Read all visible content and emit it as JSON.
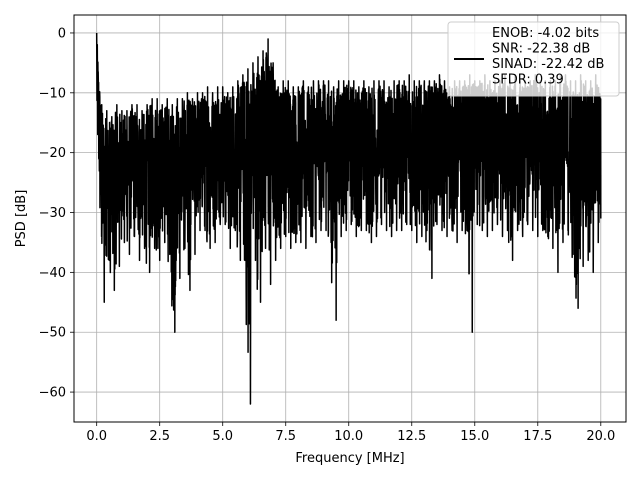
{
  "chart_data": {
    "type": "line",
    "xlabel": "Frequency [MHz]",
    "ylabel": "PSD [dB]",
    "xlim": [
      -0.9,
      21.0
    ],
    "ylim": [
      -65.0,
      3.0
    ],
    "xticks": [
      0.0,
      2.5,
      5.0,
      7.5,
      10.0,
      12.5,
      15.0,
      17.5,
      20.0
    ],
    "xtick_labels": [
      "0.0",
      "2.5",
      "5.0",
      "7.5",
      "10.0",
      "12.5",
      "15.0",
      "17.5",
      "20.0"
    ],
    "yticks": [
      0,
      -10,
      -20,
      -30,
      -40,
      -50,
      -60
    ],
    "ytick_labels": [
      "0",
      "−10",
      "−20",
      "−30",
      "−40",
      "−50",
      "−60"
    ],
    "grid": true,
    "legend_position": "top-right",
    "legend_lines": [
      "ENOB: -4.02 bits",
      "SNR: -22.38 dB",
      "SINAD: -22.42 dB",
      "SFDR: 0.39"
    ],
    "series_color": "#000000",
    "series": [
      {
        "x": [
          0.0,
          0.2,
          0.4,
          0.6,
          0.8,
          1.0,
          1.2,
          1.4,
          1.6,
          1.8,
          2.0,
          2.2,
          2.4,
          2.6,
          2.8,
          3.0,
          3.2,
          3.4,
          3.6,
          3.8,
          4.0,
          4.2,
          4.4,
          4.6,
          4.8,
          5.0,
          5.2,
          5.4,
          5.6,
          5.8,
          6.0,
          6.2,
          6.4,
          6.6,
          6.8,
          7.0,
          7.2,
          7.4,
          7.6,
          7.8,
          8.0,
          8.2,
          8.4,
          8.6,
          8.8,
          9.0,
          9.2,
          9.4,
          9.6,
          9.8,
          10.0,
          10.2,
          10.4,
          10.6,
          10.8,
          11.0,
          11.2,
          11.4,
          11.6,
          11.8,
          12.0,
          12.2,
          12.4,
          12.6,
          12.8,
          13.0,
          13.2,
          13.4,
          13.6,
          13.8,
          14.0,
          14.2,
          14.4,
          14.6,
          14.8,
          15.0,
          15.2,
          15.4,
          15.6,
          15.8,
          16.0,
          16.2,
          16.4,
          16.6,
          16.8,
          17.0,
          17.2,
          17.4,
          17.6,
          17.8,
          18.0,
          18.2,
          18.4,
          18.6,
          18.8,
          19.0,
          19.2,
          19.4,
          19.6,
          19.8,
          20.0
        ],
        "top": [
          0.0,
          -12,
          -13,
          -14,
          -12,
          -13,
          -13,
          -12,
          -12,
          -13,
          -12,
          -11,
          -11,
          -12,
          -11,
          -12,
          -11,
          -11,
          -10,
          -11,
          -10,
          -10,
          -9,
          -10,
          -9,
          -9,
          -10,
          -9,
          -8,
          -7,
          -6,
          -5,
          -4,
          -3,
          -1,
          -5,
          -9,
          -8,
          -8,
          -9,
          -9,
          -8,
          -9,
          -8,
          -8,
          -8,
          -8,
          -9,
          -8,
          -8,
          -8,
          -8,
          -9,
          -8,
          -9,
          -8,
          -8,
          -8,
          -9,
          -8,
          -8,
          -8,
          -7,
          -8,
          -8,
          -8,
          -8,
          -8,
          -7,
          -8,
          -9,
          -8,
          -8,
          -8,
          -7,
          -8,
          -8,
          -7,
          -8,
          -8,
          -8,
          -7,
          -8,
          -7,
          -8,
          -8,
          -8,
          -7,
          -8,
          -8,
          -8,
          -8,
          -7,
          -7,
          -8,
          -8,
          -7,
          -8,
          -8,
          -7,
          -8
        ],
        "bottom": [
          -18,
          -45,
          -38,
          -43,
          -39,
          -35,
          -37,
          -34,
          -38,
          -36,
          -40,
          -36,
          -38,
          -35,
          -37,
          -50,
          -41,
          -36,
          -43,
          -37,
          -33,
          -33,
          -36,
          -35,
          -32,
          -32,
          -36,
          -33,
          -38,
          -35,
          -62,
          -38,
          -45,
          -36,
          -42,
          -38,
          -36,
          -34,
          -36,
          -35,
          -35,
          -36,
          -34,
          -35,
          -33,
          -33,
          -35,
          -48,
          -34,
          -33,
          -32,
          -34,
          -33,
          -33,
          -35,
          -34,
          -32,
          -33,
          -34,
          -33,
          -33,
          -32,
          -33,
          -35,
          -34,
          -33,
          -41,
          -32,
          -33,
          -34,
          -33,
          -35,
          -33,
          -32,
          -50,
          -32,
          -33,
          -34,
          -33,
          -32,
          -34,
          -33,
          -38,
          -33,
          -34,
          -32,
          -33,
          -34,
          -33,
          -34,
          -36,
          -40,
          -35,
          -33,
          -37,
          -46,
          -39,
          -38,
          -40,
          -35,
          -31
        ]
      }
    ]
  }
}
